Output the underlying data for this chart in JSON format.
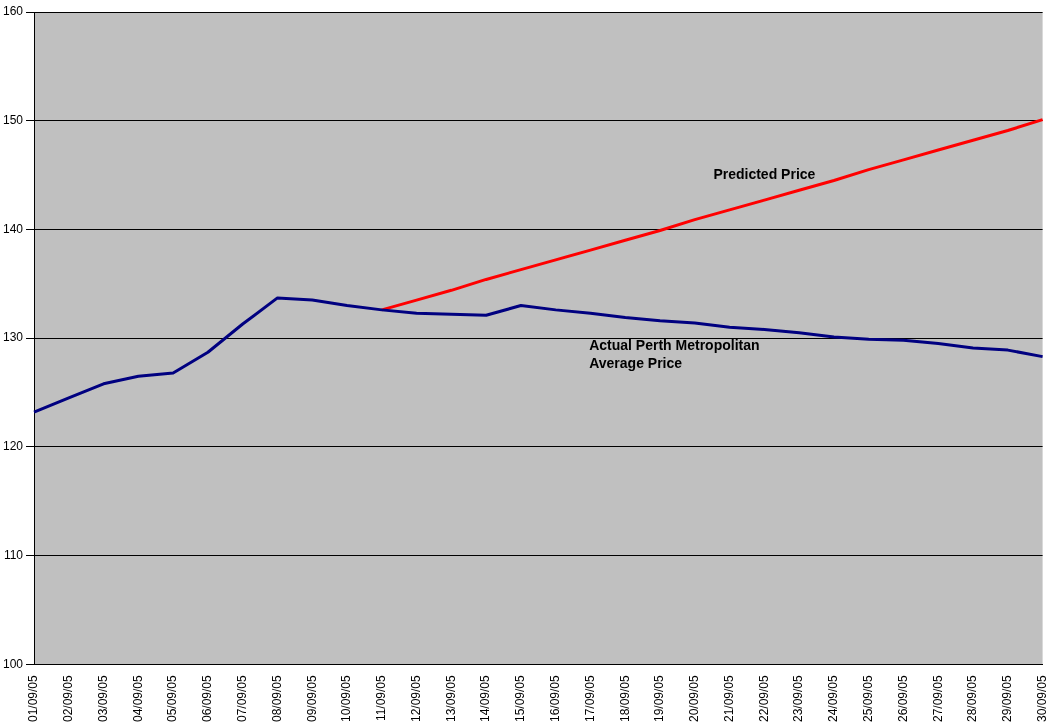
{
  "chart_data": {
    "type": "line",
    "categories": [
      "01/09/05",
      "02/09/05",
      "03/09/05",
      "04/09/05",
      "05/09/05",
      "06/09/05",
      "07/09/05",
      "08/09/05",
      "09/09/05",
      "10/09/05",
      "11/09/05",
      "12/09/05",
      "13/09/05",
      "14/09/05",
      "15/09/05",
      "16/09/05",
      "17/09/05",
      "18/09/05",
      "19/09/05",
      "20/09/05",
      "21/09/05",
      "22/09/05",
      "23/09/05",
      "24/09/05",
      "25/09/05",
      "26/09/05",
      "27/09/05",
      "28/09/05",
      "29/09/05",
      "30/09/05"
    ],
    "series": [
      {
        "name": "Actual Perth Metropolitan Average Price",
        "color": "#000080",
        "values": [
          123.2,
          124.5,
          125.8,
          126.5,
          126.8,
          128.7,
          131.3,
          133.7,
          133.5,
          133.0,
          132.6,
          132.3,
          132.2,
          132.1,
          133.0,
          132.6,
          132.3,
          131.9,
          131.6,
          131.4,
          131.0,
          130.8,
          130.5,
          130.1,
          129.9,
          129.8,
          129.5,
          129.1,
          128.9,
          128.3
        ]
      },
      {
        "name": "Predicted Price",
        "color": "#ff0000",
        "values": [
          null,
          null,
          null,
          null,
          null,
          null,
          null,
          null,
          null,
          null,
          132.6,
          133.5,
          134.4,
          135.4,
          136.3,
          137.2,
          138.1,
          139.0,
          139.9,
          140.9,
          141.8,
          142.7,
          143.6,
          144.5,
          145.5,
          146.4,
          147.3,
          148.2,
          149.1,
          150.1
        ]
      }
    ],
    "ylim": [
      100,
      160
    ],
    "yticks": [
      100,
      110,
      120,
      130,
      140,
      150,
      160
    ],
    "grid": "y",
    "legend": false,
    "marker": "none",
    "line_style": "solid"
  }
}
